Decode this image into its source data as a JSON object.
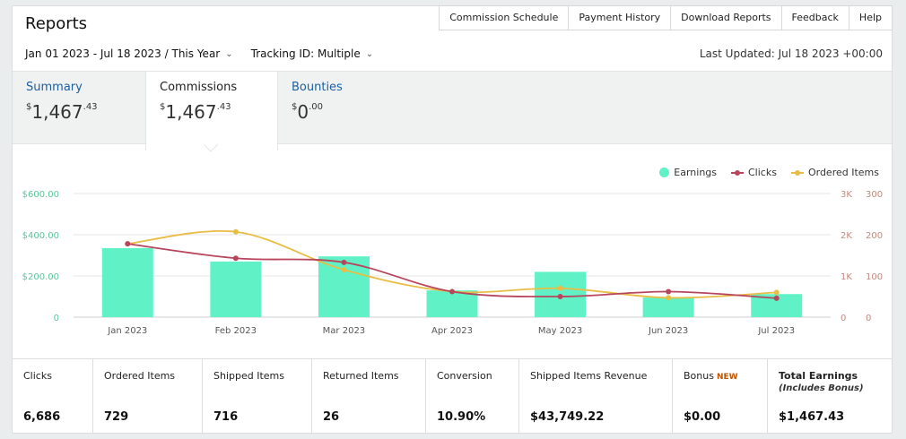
{
  "header": {
    "title": "Reports",
    "nav": [
      "Commission Schedule",
      "Payment History",
      "Download Reports",
      "Feedback",
      "Help"
    ]
  },
  "filters": {
    "date_range": "Jan 01 2023 - Jul 18 2023",
    "period": "This Year",
    "tracking_id": "Tracking ID: Multiple",
    "last_updated": "Last Updated: Jul 18 2023 +00:00"
  },
  "tabs": [
    {
      "label": "Summary",
      "currency": "$",
      "dollars": "1,467",
      "cents": ".43",
      "active": false
    },
    {
      "label": "Commissions",
      "currency": "$",
      "dollars": "1,467",
      "cents": ".43",
      "active": true
    },
    {
      "label": "Bounties",
      "currency": "$",
      "dollars": "0",
      "cents": ".00",
      "active": false
    }
  ],
  "legend": {
    "earnings": "Earnings",
    "clicks": "Clicks",
    "ordered": "Ordered Items"
  },
  "colors": {
    "earnings": "#60f2c6",
    "clicks": "#b7465d",
    "ordered": "#e8bd45",
    "link": "#1d5fa0"
  },
  "chart_data": {
    "type": "bar",
    "categories": [
      "Jan 2023",
      "Feb 2023",
      "Mar 2023",
      "Apr 2023",
      "May 2023",
      "Jun 2023",
      "Jul 2023"
    ],
    "series": [
      {
        "name": "Earnings",
        "type": "bar",
        "axis": "left",
        "values": [
          335,
          270,
          295,
          130,
          220,
          95,
          112
        ]
      },
      {
        "name": "Clicks",
        "type": "line",
        "axis": "right-clicks",
        "values": [
          1780,
          1430,
          1330,
          620,
          500,
          620,
          460
        ]
      },
      {
        "name": "Ordered Items",
        "type": "line",
        "axis": "right-items",
        "values": [
          178,
          207,
          115,
          62,
          70,
          47,
          60
        ]
      }
    ],
    "left_axis": {
      "ylim": [
        0,
        600
      ],
      "ticks": [
        "0",
        "$200.00",
        "$400.00",
        "$600.00"
      ]
    },
    "clicks_axis": {
      "ylim": [
        0,
        3000
      ],
      "ticks": [
        "0",
        "1K",
        "2K",
        "3K"
      ]
    },
    "items_axis": {
      "ylim": [
        0,
        300
      ],
      "ticks": [
        "0",
        "100",
        "200",
        "300"
      ]
    },
    "grid": true,
    "legend_position": "top-right"
  },
  "summary": [
    {
      "label": "Clicks",
      "value": "6,686"
    },
    {
      "label": "Ordered Items",
      "value": "729"
    },
    {
      "label": "Shipped Items",
      "value": "716"
    },
    {
      "label": "Returned Items",
      "value": "26"
    },
    {
      "label": "Conversion",
      "value": "10.90%"
    },
    {
      "label": "Shipped Items Revenue",
      "value": "$43,749.22"
    },
    {
      "label": "Bonus",
      "badge": "NEW",
      "value": "$0.00"
    },
    {
      "label": "Total Earnings",
      "sub": "(Includes Bonus)",
      "value": "$1,467.43"
    }
  ]
}
